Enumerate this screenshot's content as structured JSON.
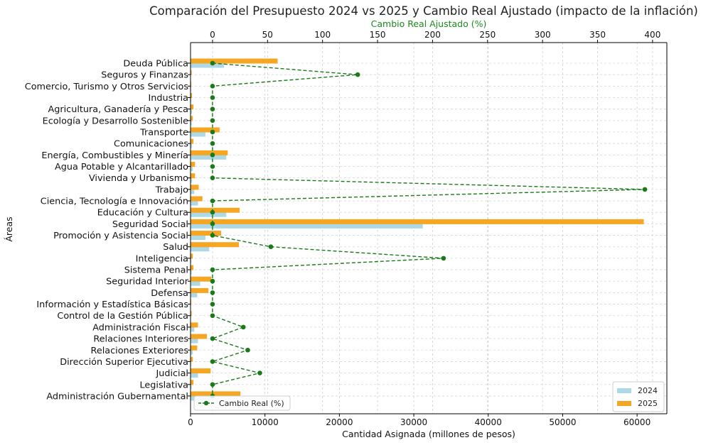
{
  "chart_data": {
    "type": "bar",
    "title": "Comparación del Presupuesto 2024 vs 2025 y Cambio Real Ajustado (impacto de la inflación)",
    "xlabel": "Cantidad Asignada (millones de pesos)",
    "ylabel": "Áreas",
    "x2label": "Cambio Real Ajustado (%)",
    "xlim": [
      0,
      64000
    ],
    "x2lim": [
      -20,
      413
    ],
    "xticks": [
      0,
      10000,
      20000,
      30000,
      40000,
      50000,
      60000
    ],
    "x2ticks": [
      0,
      50,
      100,
      150,
      200,
      250,
      300,
      350,
      400
    ],
    "grid": true,
    "orientation": "horizontal",
    "categories": [
      "Deuda Pública",
      "Seguros y Finanzas",
      "Comercio, Turismo y Otros Servicios",
      "Industria",
      "Agricultura, Ganadería y Pesca",
      "Ecología y Desarrollo Sostenible",
      "Transporte",
      "Comunicaciones",
      "Energía, Combustibles y Minería",
      "Agua Potable y Alcantarillado",
      "Vivienda y Urbanismo",
      "Trabajo",
      "Ciencia, Tecnología e Innovación",
      "Educación y Cultura",
      "Seguridad Social",
      "Promoción y Asistencia Social",
      "Salud",
      "Inteligencia",
      "Sistema Penal",
      "Seguridad Interior",
      "Defensa",
      "Información y Estadística Básicas",
      "Control de la Gestión Pública",
      "Administración Fiscal",
      "Relaciones Interiores",
      "Relaciones Exteriores",
      "Dirección Superior Ejecutiva",
      "Judicial",
      "Legislativa",
      "Administración Gubernamental"
    ],
    "series": [
      {
        "name": "2024",
        "color": "#add8e6",
        "axis": "bottom",
        "values": [
          4500,
          30,
          80,
          100,
          200,
          150,
          2000,
          200,
          4800,
          300,
          200,
          500,
          1000,
          4800,
          31200,
          2000,
          2500,
          100,
          150,
          1300,
          900,
          50,
          60,
          500,
          1000,
          300,
          100,
          1000,
          150,
          3000
        ]
      },
      {
        "name": "2025",
        "color": "#f5a623",
        "axis": "bottom",
        "values": [
          11700,
          150,
          100,
          200,
          400,
          300,
          3900,
          400,
          5000,
          600,
          600,
          1100,
          1600,
          6600,
          60900,
          4100,
          6500,
          300,
          400,
          2800,
          2400,
          100,
          150,
          1000,
          2200,
          900,
          300,
          2700,
          400,
          6700
        ]
      },
      {
        "name": "Cambio Real (%)",
        "color": "#1a7a1a",
        "axis": "top",
        "style": "dashed-line-markers",
        "values": [
          0,
          132,
          0,
          0,
          0,
          0,
          0,
          0,
          0,
          0,
          0,
          393,
          0,
          0,
          0,
          0,
          53,
          210,
          0,
          0,
          0,
          0,
          0,
          28,
          0,
          32,
          0,
          43,
          0,
          0
        ]
      }
    ],
    "legend_bars": {
      "position": "bottom-right",
      "entries": [
        "2024",
        "2025"
      ]
    },
    "legend_line": {
      "position": "bottom-left",
      "entries": [
        "Cambio Real (%)"
      ]
    }
  }
}
